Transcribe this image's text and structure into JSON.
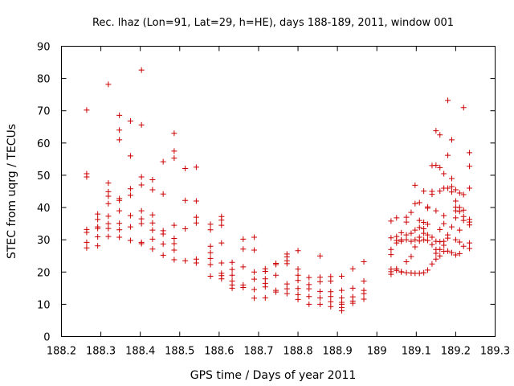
{
  "chart_data": {
    "type": "scatter",
    "title": "Rec. lhaz (Lon=91, Lat=29, h=HE), days 188-189, 2011, window 001",
    "xlabel": "GPS time / Days of year 2011",
    "ylabel": "STEC from uqrg / TECUs",
    "xlim": [
      188.2,
      189.3
    ],
    "ylim": [
      0,
      90
    ],
    "grid": false,
    "legend": "none",
    "x_ticks": [
      "188.2",
      "188.3",
      "188.4",
      "188.5",
      "188.6",
      "188.7",
      "188.8",
      "188.9",
      "189",
      "189.1",
      "189.2",
      "189.3"
    ],
    "y_ticks": [
      "0",
      "10",
      "20",
      "30",
      "40",
      "50",
      "60",
      "70",
      "80",
      "90"
    ],
    "marker_color": "#cc0000",
    "marker": "plus",
    "series": [
      {
        "points": [
          [
            188.264,
            70.2
          ],
          [
            188.264,
            50.5
          ],
          [
            188.264,
            49.5
          ],
          [
            188.264,
            33.2
          ],
          [
            188.264,
            32.3
          ],
          [
            188.264,
            29.2
          ],
          [
            188.264,
            27.5
          ],
          [
            188.292,
            38.0
          ],
          [
            188.292,
            36.3
          ],
          [
            188.292,
            34.0
          ],
          [
            188.292,
            33.5
          ],
          [
            188.292,
            30.9
          ],
          [
            188.292,
            28.1
          ],
          [
            188.319,
            78.2
          ],
          [
            188.319,
            47.6
          ],
          [
            188.319,
            44.9
          ],
          [
            188.319,
            43.5
          ],
          [
            188.319,
            41.2
          ],
          [
            188.319,
            37.3
          ],
          [
            188.319,
            35.0
          ],
          [
            188.319,
            33.5
          ],
          [
            188.319,
            31.0
          ],
          [
            188.347,
            68.6
          ],
          [
            188.347,
            64.0
          ],
          [
            188.347,
            61.0
          ],
          [
            188.347,
            42.8
          ],
          [
            188.347,
            42.2
          ],
          [
            188.347,
            39.0
          ],
          [
            188.347,
            35.1
          ],
          [
            188.347,
            33.1
          ],
          [
            188.347,
            30.8
          ],
          [
            188.375,
            66.8
          ],
          [
            188.375,
            56.0
          ],
          [
            188.375,
            45.8
          ],
          [
            188.375,
            43.8
          ],
          [
            188.375,
            37.5
          ],
          [
            188.375,
            34.0
          ],
          [
            188.375,
            29.8
          ],
          [
            188.403,
            82.6
          ],
          [
            188.403,
            65.6
          ],
          [
            188.403,
            49.5
          ],
          [
            188.403,
            47.0
          ],
          [
            188.403,
            39.0
          ],
          [
            188.403,
            36.5
          ],
          [
            188.403,
            35.0
          ],
          [
            188.403,
            29.2
          ],
          [
            188.403,
            28.8
          ],
          [
            188.431,
            48.6
          ],
          [
            188.431,
            45.5
          ],
          [
            188.431,
            37.7
          ],
          [
            188.431,
            35.2
          ],
          [
            188.431,
            33.0
          ],
          [
            188.431,
            30.2
          ],
          [
            188.431,
            27.1
          ],
          [
            188.458,
            54.2
          ],
          [
            188.458,
            44.2
          ],
          [
            188.458,
            32.8
          ],
          [
            188.458,
            31.8
          ],
          [
            188.458,
            28.7
          ],
          [
            188.458,
            25.2
          ],
          [
            188.486,
            63.0
          ],
          [
            188.486,
            57.5
          ],
          [
            188.486,
            55.3
          ],
          [
            188.486,
            34.5
          ],
          [
            188.486,
            30.4
          ],
          [
            188.486,
            28.8
          ],
          [
            188.486,
            26.8
          ],
          [
            188.486,
            23.8
          ],
          [
            188.514,
            52.1
          ],
          [
            188.514,
            42.2
          ],
          [
            188.514,
            33.4
          ],
          [
            188.514,
            23.5
          ],
          [
            188.542,
            52.5
          ],
          [
            188.542,
            42.0
          ],
          [
            188.542,
            37.0
          ],
          [
            188.542,
            35.2
          ],
          [
            188.542,
            24.0
          ],
          [
            188.542,
            22.8
          ],
          [
            188.578,
            34.8
          ],
          [
            188.578,
            33.1
          ],
          [
            188.578,
            28.0
          ],
          [
            188.578,
            26.0
          ],
          [
            188.578,
            24.2
          ],
          [
            188.578,
            22.3
          ],
          [
            188.578,
            18.7
          ],
          [
            188.606,
            37.2
          ],
          [
            188.606,
            36.1
          ],
          [
            188.606,
            34.5
          ],
          [
            188.606,
            29.0
          ],
          [
            188.606,
            22.8
          ],
          [
            188.606,
            19.6
          ],
          [
            188.606,
            18.9
          ],
          [
            188.606,
            17.9
          ],
          [
            188.633,
            23.0
          ],
          [
            188.633,
            20.8
          ],
          [
            188.633,
            19.0
          ],
          [
            188.633,
            17.2
          ],
          [
            188.633,
            16.0
          ],
          [
            188.633,
            15.0
          ],
          [
            188.661,
            30.2
          ],
          [
            188.661,
            27.1
          ],
          [
            188.661,
            21.6
          ],
          [
            188.661,
            16.0
          ],
          [
            188.661,
            15.2
          ],
          [
            188.689,
            30.8
          ],
          [
            188.689,
            26.8
          ],
          [
            188.689,
            20.0
          ],
          [
            188.689,
            17.8
          ],
          [
            188.689,
            14.6
          ],
          [
            188.689,
            11.9
          ],
          [
            188.717,
            21.0
          ],
          [
            188.717,
            20.2
          ],
          [
            188.717,
            17.9
          ],
          [
            188.717,
            16.5
          ],
          [
            188.717,
            15.4
          ],
          [
            188.717,
            12.0
          ],
          [
            188.744,
            22.7
          ],
          [
            188.744,
            22.3
          ],
          [
            188.744,
            19.0
          ],
          [
            188.744,
            14.3
          ],
          [
            188.744,
            13.8
          ],
          [
            188.772,
            25.6
          ],
          [
            188.772,
            24.7
          ],
          [
            188.772,
            23.5
          ],
          [
            188.772,
            22.6
          ],
          [
            188.772,
            16.3
          ],
          [
            188.772,
            14.8
          ],
          [
            188.772,
            13.3
          ],
          [
            188.8,
            26.6
          ],
          [
            188.8,
            20.9
          ],
          [
            188.8,
            19.0
          ],
          [
            188.8,
            17.4
          ],
          [
            188.8,
            14.9
          ],
          [
            188.8,
            13.0
          ],
          [
            188.8,
            11.5
          ],
          [
            188.828,
            18.3
          ],
          [
            188.828,
            16.1
          ],
          [
            188.828,
            14.8
          ],
          [
            188.828,
            12.4
          ],
          [
            188.828,
            10.0
          ],
          [
            188.856,
            25.0
          ],
          [
            188.856,
            18.4
          ],
          [
            188.856,
            17.0
          ],
          [
            188.856,
            14.0
          ],
          [
            188.856,
            12.0
          ],
          [
            188.856,
            10.0
          ],
          [
            188.883,
            18.6
          ],
          [
            188.883,
            17.2
          ],
          [
            188.883,
            13.9
          ],
          [
            188.883,
            12.4
          ],
          [
            188.883,
            10.8
          ],
          [
            188.883,
            9.3
          ],
          [
            188.911,
            18.7
          ],
          [
            188.911,
            14.3
          ],
          [
            188.911,
            12.0
          ],
          [
            188.911,
            10.6
          ],
          [
            188.911,
            10.0
          ],
          [
            188.911,
            9.0
          ],
          [
            188.911,
            8.0
          ],
          [
            188.939,
            21.0
          ],
          [
            188.939,
            15.0
          ],
          [
            188.939,
            12.3
          ],
          [
            188.939,
            11.0
          ],
          [
            188.939,
            10.3
          ],
          [
            188.967,
            23.2
          ],
          [
            188.967,
            17.2
          ],
          [
            188.967,
            14.3
          ],
          [
            188.967,
            13.3
          ],
          [
            188.967,
            11.6
          ],
          [
            189.036,
            35.8
          ],
          [
            189.036,
            30.6
          ],
          [
            189.036,
            27.0
          ],
          [
            189.036,
            25.4
          ],
          [
            189.036,
            20.9
          ],
          [
            189.036,
            20.1
          ],
          [
            189.036,
            19.3
          ],
          [
            189.05,
            36.8
          ],
          [
            189.05,
            31.0
          ],
          [
            189.05,
            29.8
          ],
          [
            189.05,
            29.0
          ],
          [
            189.05,
            21.0
          ],
          [
            189.05,
            20.5
          ],
          [
            189.062,
            32.2
          ],
          [
            189.062,
            30.0
          ],
          [
            189.062,
            29.5
          ],
          [
            189.062,
            20.1
          ],
          [
            189.062,
            20.0
          ],
          [
            189.075,
            37.0
          ],
          [
            189.075,
            35.5
          ],
          [
            189.075,
            31.5
          ],
          [
            189.075,
            30.0
          ],
          [
            189.075,
            23.2
          ],
          [
            189.075,
            19.8
          ],
          [
            189.087,
            38.5
          ],
          [
            189.087,
            32.0
          ],
          [
            189.087,
            29.5
          ],
          [
            189.087,
            24.8
          ],
          [
            189.087,
            19.7
          ],
          [
            189.097,
            46.9
          ],
          [
            189.097,
            41.2
          ],
          [
            189.097,
            33.0
          ],
          [
            189.097,
            30.0
          ],
          [
            189.097,
            27.8
          ],
          [
            189.097,
            19.6
          ],
          [
            189.108,
            41.5
          ],
          [
            189.108,
            36.0
          ],
          [
            189.108,
            33.8
          ],
          [
            189.108,
            30.8
          ],
          [
            189.108,
            29.6
          ],
          [
            189.108,
            19.6
          ],
          [
            189.119,
            45.1
          ],
          [
            189.119,
            35.4
          ],
          [
            189.119,
            33.4
          ],
          [
            189.119,
            32.0
          ],
          [
            189.119,
            30.0
          ],
          [
            189.119,
            19.8
          ],
          [
            189.129,
            40.2
          ],
          [
            189.129,
            39.8
          ],
          [
            189.129,
            34.8
          ],
          [
            189.129,
            31.5
          ],
          [
            189.129,
            29.8
          ],
          [
            189.129,
            20.6
          ],
          [
            189.14,
            53.0
          ],
          [
            189.14,
            45.0
          ],
          [
            189.14,
            44.1
          ],
          [
            189.14,
            30.8
          ],
          [
            189.14,
            28.5
          ],
          [
            189.14,
            22.5
          ],
          [
            189.15,
            63.8
          ],
          [
            189.15,
            53.1
          ],
          [
            189.15,
            39.0
          ],
          [
            189.15,
            29.5
          ],
          [
            189.15,
            27.0
          ],
          [
            189.15,
            25.8
          ],
          [
            189.15,
            24.0
          ],
          [
            189.16,
            62.5
          ],
          [
            189.16,
            52.4
          ],
          [
            189.16,
            45.1
          ],
          [
            189.16,
            33.2
          ],
          [
            189.16,
            29.4
          ],
          [
            189.16,
            27.0
          ],
          [
            189.16,
            25.0
          ],
          [
            189.17,
            50.5
          ],
          [
            189.17,
            46.0
          ],
          [
            189.17,
            37.5
          ],
          [
            189.17,
            35.0
          ],
          [
            189.17,
            29.5
          ],
          [
            189.17,
            28.3
          ],
          [
            189.17,
            26.4
          ],
          [
            189.18,
            73.2
          ],
          [
            189.18,
            56.2
          ],
          [
            189.18,
            46.0
          ],
          [
            189.18,
            31.5
          ],
          [
            189.18,
            30.5
          ],
          [
            189.18,
            26.5
          ],
          [
            189.19,
            61.0
          ],
          [
            189.19,
            49.0
          ],
          [
            189.19,
            46.5
          ],
          [
            189.19,
            44.8
          ],
          [
            189.19,
            34.0
          ],
          [
            189.19,
            26.0
          ],
          [
            189.2,
            45.5
          ],
          [
            189.2,
            42.0
          ],
          [
            189.2,
            40.1
          ],
          [
            189.2,
            39.0
          ],
          [
            189.2,
            36.8
          ],
          [
            189.2,
            30.0
          ],
          [
            189.2,
            25.3
          ],
          [
            189.21,
            44.5
          ],
          [
            189.21,
            40.0
          ],
          [
            189.21,
            38.8
          ],
          [
            189.21,
            33.0
          ],
          [
            189.21,
            29.3
          ],
          [
            189.21,
            25.7
          ],
          [
            189.22,
            71.0
          ],
          [
            189.22,
            44.0
          ],
          [
            189.22,
            39.2
          ],
          [
            189.22,
            37.2
          ],
          [
            189.22,
            36.0
          ],
          [
            189.22,
            28.0
          ],
          [
            189.235,
            57.0
          ],
          [
            189.235,
            52.8
          ],
          [
            189.235,
            46.0
          ],
          [
            189.235,
            36.3
          ],
          [
            189.235,
            35.5
          ],
          [
            189.235,
            34.6
          ],
          [
            189.235,
            29.0
          ],
          [
            189.235,
            27.3
          ]
        ]
      }
    ]
  }
}
